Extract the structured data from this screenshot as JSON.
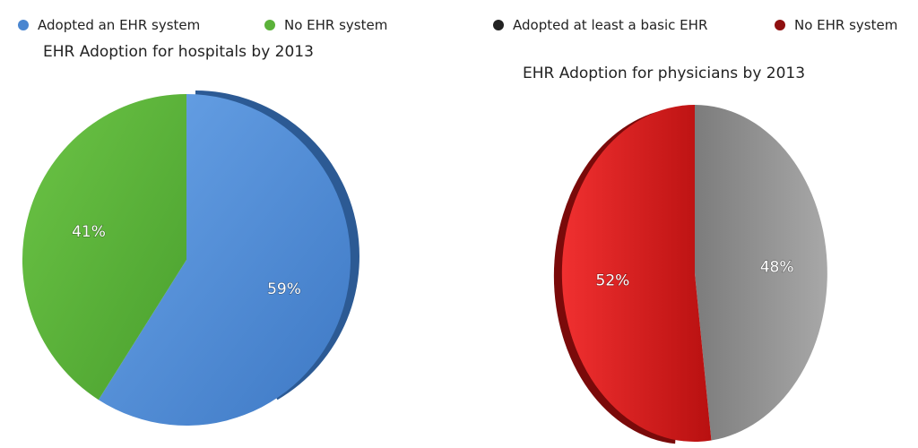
{
  "chart_data": [
    {
      "type": "pie",
      "title": "EHR Adoption for hospitals by 2013",
      "legend_position": "top",
      "slices": [
        {
          "label": "Adopted an EHR system",
          "value": 59,
          "display": "59%",
          "color": "#4a86d0",
          "dark_color": "#2c5a94"
        },
        {
          "label": "No EHR system",
          "value": 41,
          "display": "41%",
          "color": "#5bb23a",
          "dark_color": "#3d7f25"
        }
      ]
    },
    {
      "type": "pie",
      "title": "EHR Adoption for physicians by 2013",
      "legend_position": "top",
      "slices": [
        {
          "label": "Adopted at least a basic EHR",
          "value": 48,
          "display": "48%",
          "color": "#8c8c8c",
          "dark_color": "#222222"
        },
        {
          "label": "No EHR system",
          "value": 52,
          "display": "52%",
          "color": "#cc1a1a",
          "dark_color": "#7a0a0a"
        }
      ]
    }
  ]
}
